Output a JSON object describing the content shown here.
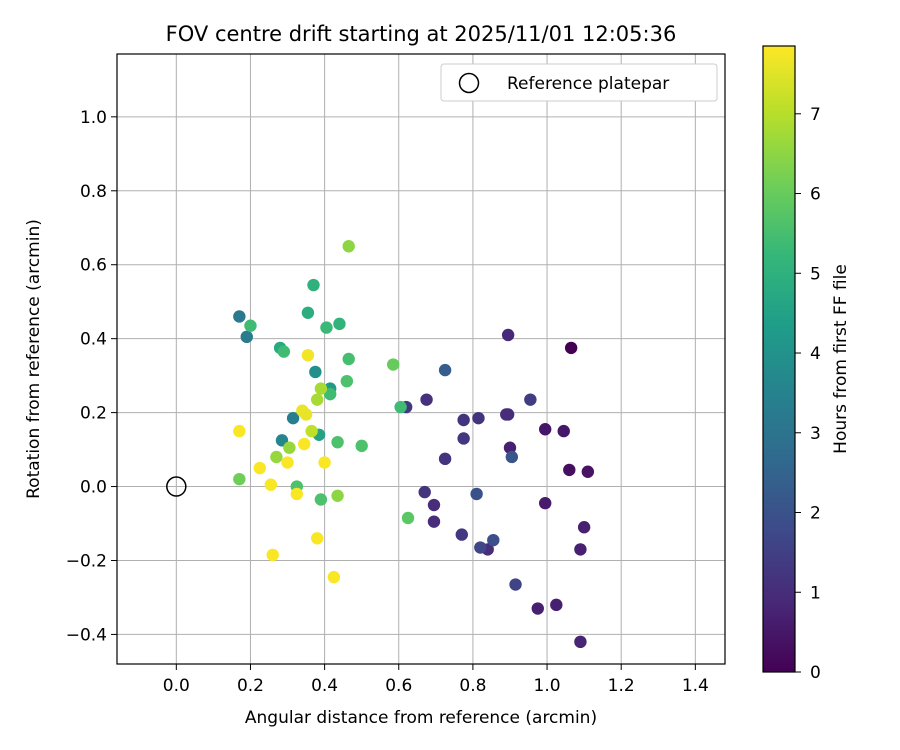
{
  "chart_data": {
    "type": "scatter",
    "title": "FOV centre drift starting at 2025/11/01 12:05:36",
    "xlabel": "Angular distance from reference (arcmin)",
    "ylabel": "Rotation from reference (arcmin)",
    "xlim": [
      -0.16,
      1.48
    ],
    "ylim": [
      -0.48,
      1.17
    ],
    "x_ticks": [
      0.0,
      0.2,
      0.4,
      0.6,
      0.8,
      1.0,
      1.2,
      1.4
    ],
    "x_tick_labels": [
      "0.0",
      "0.2",
      "0.4",
      "0.6",
      "0.8",
      "1.0",
      "1.2",
      "1.4"
    ],
    "y_ticks": [
      -0.4,
      -0.2,
      0.0,
      0.2,
      0.4,
      0.6,
      0.8,
      1.0
    ],
    "y_tick_labels": [
      "−0.4",
      "−0.2",
      "0.0",
      "0.2",
      "0.4",
      "0.6",
      "0.8",
      "1.0"
    ],
    "grid": true,
    "legend": {
      "position": "top-right",
      "entries": [
        {
          "label": "Reference platepar",
          "marker": "open-circle"
        }
      ]
    },
    "reference_point": {
      "x": 0.0,
      "y": 0.0
    },
    "colorbar": {
      "label": "Hours from first FF file",
      "range": [
        0,
        7.85
      ],
      "ticks": [
        0,
        1,
        2,
        3,
        4,
        5,
        6,
        7
      ],
      "tick_labels": [
        "0",
        "1",
        "2",
        "3",
        "4",
        "5",
        "6",
        "7"
      ],
      "colormap": "viridis",
      "colormap_stops": [
        "#440154",
        "#482878",
        "#3e4989",
        "#31688e",
        "#26828e",
        "#1f9e89",
        "#35b779",
        "#6ece58",
        "#b5de2b",
        "#fde725"
      ]
    },
    "series": [
      {
        "name": "FOV centre",
        "points": [
          {
            "x": 1.065,
            "y": 0.375,
            "t": 0.0
          },
          {
            "x": 1.06,
            "y": 0.045,
            "t": 0.3
          },
          {
            "x": 1.11,
            "y": 0.04,
            "t": 0.4
          },
          {
            "x": 0.995,
            "y": 0.155,
            "t": 0.5
          },
          {
            "x": 1.045,
            "y": 0.15,
            "t": 0.5
          },
          {
            "x": 0.975,
            "y": -0.33,
            "t": 0.7
          },
          {
            "x": 1.025,
            "y": -0.32,
            "t": 0.7
          },
          {
            "x": 0.995,
            "y": -0.045,
            "t": 0.6
          },
          {
            "x": 1.1,
            "y": -0.11,
            "t": 0.7
          },
          {
            "x": 1.09,
            "y": -0.17,
            "t": 0.7
          },
          {
            "x": 1.09,
            "y": -0.42,
            "t": 0.8
          },
          {
            "x": 0.9,
            "y": 0.105,
            "t": 0.7
          },
          {
            "x": 0.895,
            "y": 0.41,
            "t": 0.9
          },
          {
            "x": 0.89,
            "y": 0.195,
            "t": 1.0
          },
          {
            "x": 0.895,
            "y": 0.195,
            "t": 1.0
          },
          {
            "x": 0.84,
            "y": -0.17,
            "t": 1.0
          },
          {
            "x": 0.695,
            "y": -0.05,
            "t": 1.0
          },
          {
            "x": 0.695,
            "y": -0.095,
            "t": 1.0
          },
          {
            "x": 0.675,
            "y": 0.235,
            "t": 1.1
          },
          {
            "x": 0.67,
            "y": -0.015,
            "t": 1.2
          },
          {
            "x": 0.725,
            "y": 0.075,
            "t": 1.2
          },
          {
            "x": 0.775,
            "y": 0.18,
            "t": 1.2
          },
          {
            "x": 0.815,
            "y": 0.185,
            "t": 1.2
          },
          {
            "x": 0.775,
            "y": 0.13,
            "t": 1.3
          },
          {
            "x": 0.77,
            "y": -0.13,
            "t": 1.3
          },
          {
            "x": 0.62,
            "y": 0.215,
            "t": 1.3
          },
          {
            "x": 0.955,
            "y": 0.235,
            "t": 1.4
          },
          {
            "x": 0.915,
            "y": -0.265,
            "t": 1.6
          },
          {
            "x": 0.82,
            "y": -0.165,
            "t": 1.7
          },
          {
            "x": 0.855,
            "y": -0.145,
            "t": 1.9
          },
          {
            "x": 0.81,
            "y": -0.02,
            "t": 2.0
          },
          {
            "x": 0.905,
            "y": 0.08,
            "t": 2.1
          },
          {
            "x": 0.725,
            "y": 0.315,
            "t": 2.3
          },
          {
            "x": 0.17,
            "y": 0.46,
            "t": 3.2
          },
          {
            "x": 0.19,
            "y": 0.405,
            "t": 3.3
          },
          {
            "x": 0.315,
            "y": 0.185,
            "t": 3.4
          },
          {
            "x": 0.285,
            "y": 0.125,
            "t": 3.6
          },
          {
            "x": 0.375,
            "y": 0.31,
            "t": 3.9
          },
          {
            "x": 0.415,
            "y": 0.265,
            "t": 4.3
          },
          {
            "x": 0.385,
            "y": 0.14,
            "t": 4.5
          },
          {
            "x": 0.28,
            "y": 0.375,
            "t": 4.7
          },
          {
            "x": 0.355,
            "y": 0.47,
            "t": 4.9
          },
          {
            "x": 0.37,
            "y": 0.545,
            "t": 5.0
          },
          {
            "x": 0.44,
            "y": 0.44,
            "t": 5.1
          },
          {
            "x": 0.405,
            "y": 0.43,
            "t": 5.3
          },
          {
            "x": 0.29,
            "y": 0.365,
            "t": 5.4
          },
          {
            "x": 0.2,
            "y": 0.435,
            "t": 5.4
          },
          {
            "x": 0.605,
            "y": 0.215,
            "t": 5.4
          },
          {
            "x": 0.415,
            "y": 0.25,
            "t": 5.4
          },
          {
            "x": 0.465,
            "y": 0.345,
            "t": 5.5
          },
          {
            "x": 0.46,
            "y": 0.285,
            "t": 5.6
          },
          {
            "x": 0.435,
            "y": 0.12,
            "t": 5.6
          },
          {
            "x": 0.5,
            "y": 0.11,
            "t": 5.6
          },
          {
            "x": 0.325,
            "y": 0.0,
            "t": 5.6
          },
          {
            "x": 0.39,
            "y": -0.035,
            "t": 5.6
          },
          {
            "x": 0.625,
            "y": -0.085,
            "t": 5.8
          },
          {
            "x": 0.585,
            "y": 0.33,
            "t": 6.0
          },
          {
            "x": 0.17,
            "y": 0.02,
            "t": 6.1
          },
          {
            "x": 0.465,
            "y": 0.65,
            "t": 6.5
          },
          {
            "x": 0.435,
            "y": -0.025,
            "t": 6.5
          },
          {
            "x": 0.27,
            "y": 0.08,
            "t": 6.6
          },
          {
            "x": 0.305,
            "y": 0.105,
            "t": 6.6
          },
          {
            "x": 0.39,
            "y": 0.265,
            "t": 6.8
          },
          {
            "x": 0.38,
            "y": 0.235,
            "t": 6.8
          },
          {
            "x": 0.365,
            "y": 0.15,
            "t": 7.1
          },
          {
            "x": 0.35,
            "y": 0.195,
            "t": 7.6
          },
          {
            "x": 0.34,
            "y": 0.205,
            "t": 7.6
          },
          {
            "x": 0.355,
            "y": 0.355,
            "t": 7.7
          },
          {
            "x": 0.345,
            "y": 0.115,
            "t": 7.8
          },
          {
            "x": 0.17,
            "y": 0.15,
            "t": 7.8
          },
          {
            "x": 0.225,
            "y": 0.05,
            "t": 7.8
          },
          {
            "x": 0.255,
            "y": 0.005,
            "t": 7.8
          },
          {
            "x": 0.3,
            "y": 0.065,
            "t": 7.8
          },
          {
            "x": 0.4,
            "y": 0.065,
            "t": 7.8
          },
          {
            "x": 0.325,
            "y": -0.02,
            "t": 7.8
          },
          {
            "x": 0.26,
            "y": -0.185,
            "t": 7.8
          },
          {
            "x": 0.38,
            "y": -0.14,
            "t": 7.8
          },
          {
            "x": 0.425,
            "y": -0.245,
            "t": 7.8
          }
        ]
      }
    ]
  }
}
